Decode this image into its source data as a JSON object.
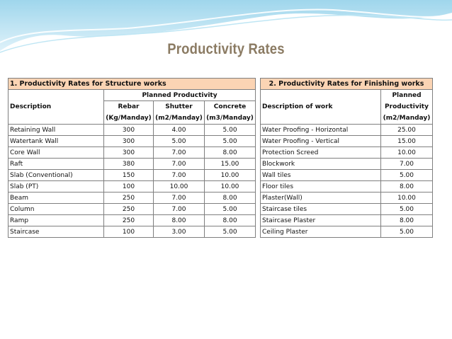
{
  "title": "Productivity Rates",
  "structure": {
    "heading": "1. Productivity Rates for Structure works",
    "col_description": "Description",
    "col_planned": "Planned Productivity",
    "col_rebar_1": "Rebar",
    "col_rebar_2": "(Kg/Manday)",
    "col_shutter_1": "Shutter",
    "col_shutter_2": "(m2/Manday)",
    "col_concrete_1": "Concrete",
    "col_concrete_2": "(m3/Manday)",
    "rows": [
      {
        "desc": "Retaining Wall",
        "rebar": "300",
        "shutter": "4.00",
        "concrete": "5.00"
      },
      {
        "desc": "Watertank Wall",
        "rebar": "300",
        "shutter": "5.00",
        "concrete": "5.00"
      },
      {
        "desc": "Core Wall",
        "rebar": "300",
        "shutter": "7.00",
        "concrete": "8.00"
      },
      {
        "desc": "Raft",
        "rebar": "380",
        "shutter": "7.00",
        "concrete": "15.00"
      },
      {
        "desc": "Slab (Conventional)",
        "rebar": "150",
        "shutter": "7.00",
        "concrete": "10.00"
      },
      {
        "desc": "Slab (PT)",
        "rebar": "100",
        "shutter": "10.00",
        "concrete": "10.00"
      },
      {
        "desc": "Beam",
        "rebar": "250",
        "shutter": "7.00",
        "concrete": "8.00"
      },
      {
        "desc": "Column",
        "rebar": "250",
        "shutter": "7.00",
        "concrete": "5.00"
      },
      {
        "desc": "Ramp",
        "rebar": "250",
        "shutter": "8.00",
        "concrete": "8.00"
      },
      {
        "desc": "Staircase",
        "rebar": "100",
        "shutter": "3.00",
        "concrete": "5.00"
      }
    ]
  },
  "finishing": {
    "heading": "2. Productivity Rates for Finishing works",
    "col_description": "Description of work",
    "col_planned_1": "Planned",
    "col_planned_2": "Productivity",
    "col_planned_3": "(m2/Manday)",
    "rows": [
      {
        "desc": "Water Proofing - Horizontal",
        "value": "25.00"
      },
      {
        "desc": "Water Proofing - Vertical",
        "value": "15.00"
      },
      {
        "desc": "Protection Screed",
        "value": "10.00"
      },
      {
        "desc": "Blockwork",
        "value": "7.00"
      },
      {
        "desc": "Wall tiles",
        "value": "5.00"
      },
      {
        "desc": "Floor tiles",
        "value": "8.00"
      },
      {
        "desc": "Plaster(Wall)",
        "value": "10.00"
      },
      {
        "desc": "Staircase tiles",
        "value": "5.00"
      },
      {
        "desc": "Staircase Plaster",
        "value": "8.00"
      },
      {
        "desc": "Ceiling Plaster",
        "value": "5.00"
      }
    ]
  }
}
